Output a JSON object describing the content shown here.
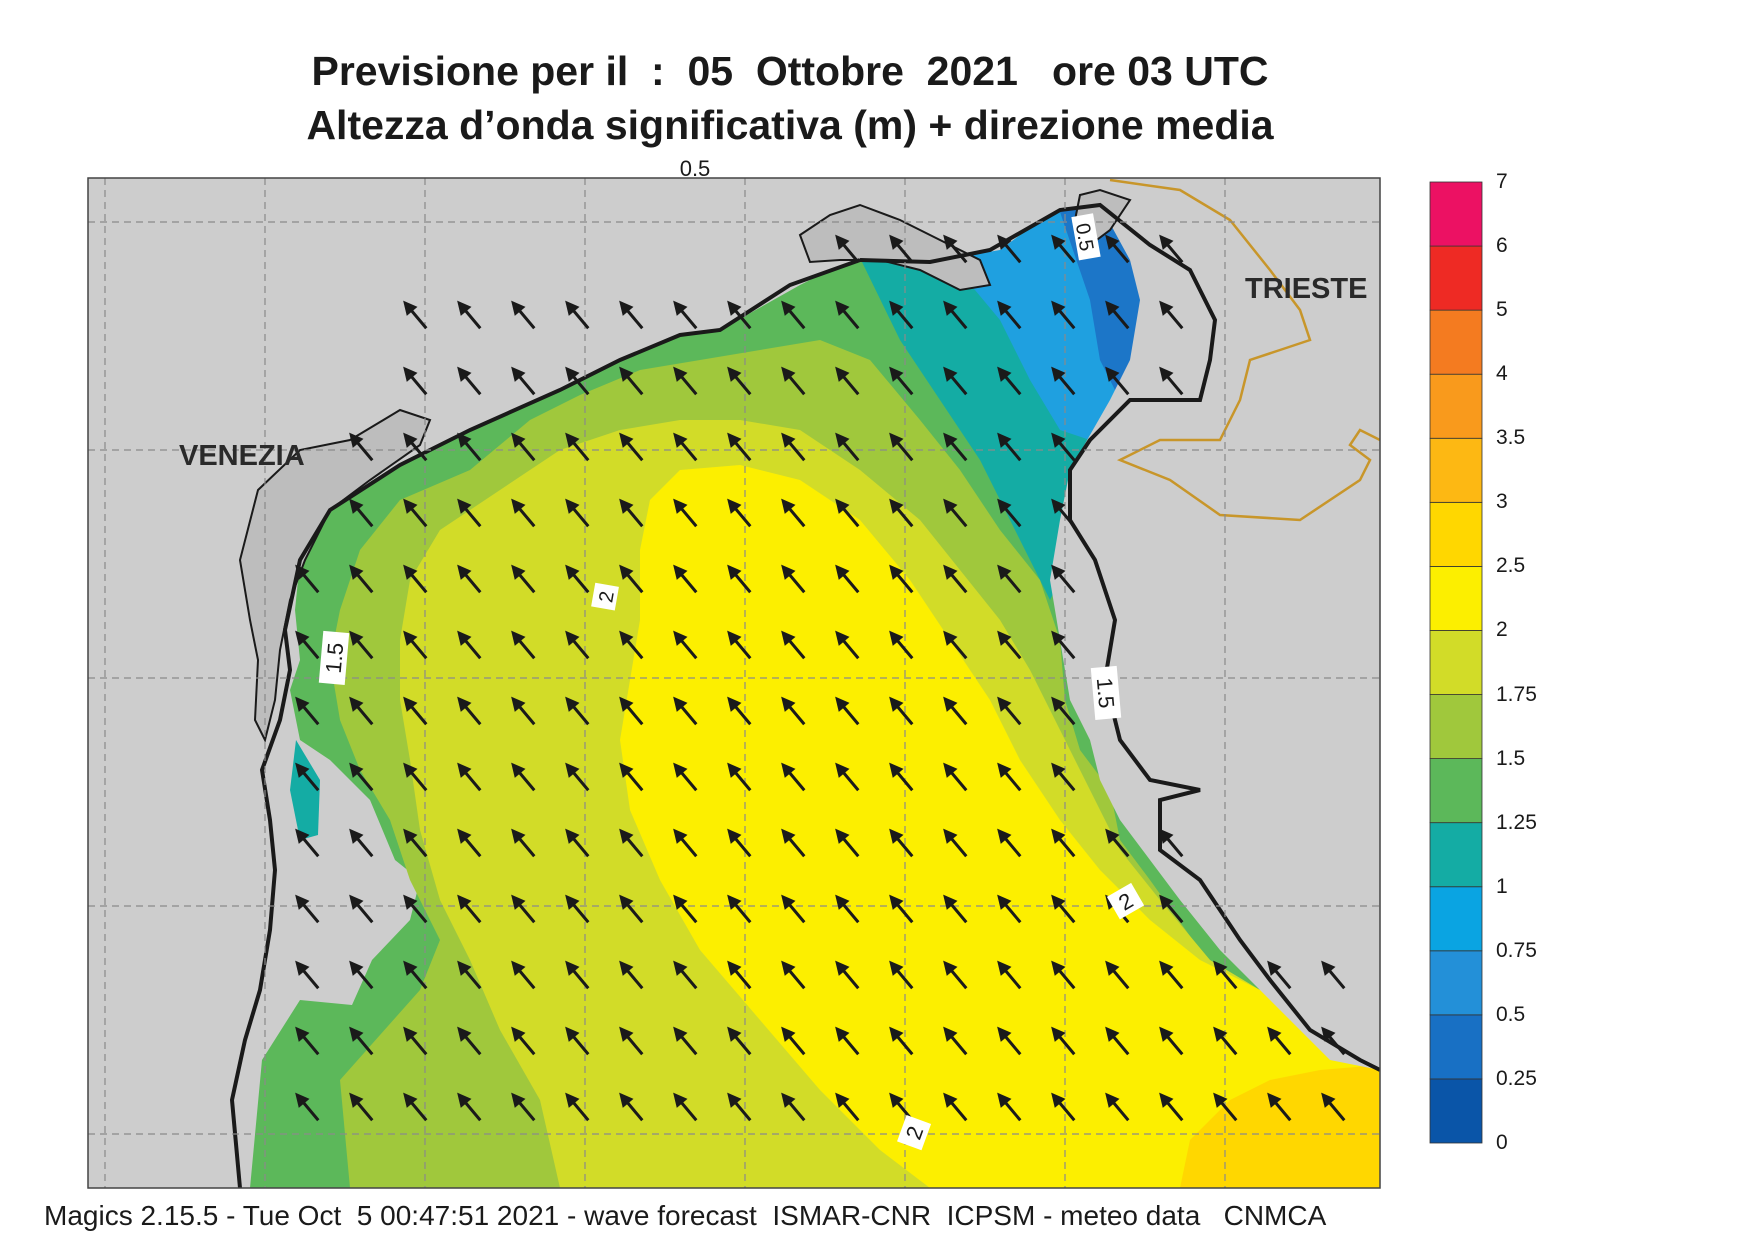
{
  "title_line1": "Previsione per il  :  05  Ottobre  2021   ore 03 UTC",
  "title_line2": "Altezza d’onda significativa (m) + direzione media",
  "footer": "Magics 2.15.5 - Tue Oct  5 00:47:51 2021 - wave forecast  ISMAR-CNR  ICPSM - meteo data   CNMCA",
  "cities": {
    "venezia": "VENEZIA",
    "trieste": "TRIESTE"
  },
  "contour_labels": [
    "0.5",
    "2",
    "1.5",
    "1.5",
    "2",
    "2",
    "0.5"
  ],
  "colorbar": {
    "levels": [
      "0",
      "0.25",
      "0.5",
      "0.75",
      "1",
      "1.25",
      "1.5",
      "1.75",
      "2",
      "2.5",
      "3",
      "3.5",
      "4",
      "5",
      "6",
      "7"
    ],
    "colors": [
      "#0a55a8",
      "#1870c4",
      "#2390d8",
      "#0aa4e2",
      "#14aca4",
      "#5cb85a",
      "#a0c83c",
      "#d2dc28",
      "#fcef00",
      "#ffd700",
      "#fdb813",
      "#f99a1c",
      "#f47b20",
      "#ee2a24",
      "#ec1163"
    ]
  },
  "colors": {
    "land": "#cdcdcd",
    "coast": "#1a1a1a",
    "border": "#c8962a",
    "arrow": "#1a1a1a",
    "grid": "#8a8a8a"
  },
  "wave_direction": "towards north-west"
}
